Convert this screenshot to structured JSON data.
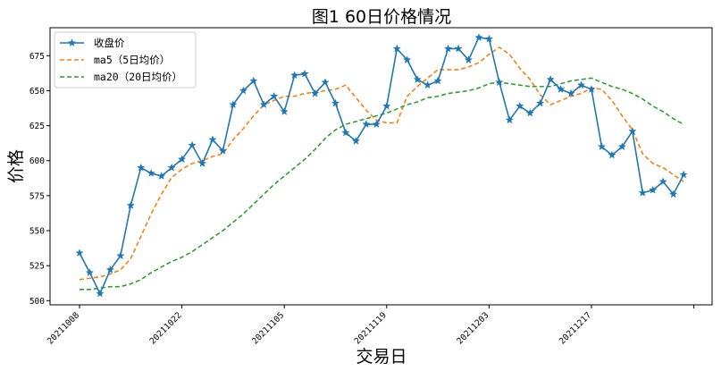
{
  "chart_data": {
    "type": "line",
    "title": "图1  60日价格情况",
    "xlabel": "交易日",
    "ylabel": "价格",
    "ylim": [
      497,
      695
    ],
    "yticks": [
      500,
      525,
      550,
      575,
      600,
      625,
      650,
      675
    ],
    "x_tick_labels": [
      "20211008",
      "20211022",
      "20211105",
      "20211119",
      "20211203",
      "20211217"
    ],
    "x_tick_index": [
      0,
      10,
      20,
      30,
      40,
      50
    ],
    "x_extra_tick_index": 60,
    "grid": false,
    "legend_placement": "top-left",
    "series": [
      {
        "name": "收盘价",
        "color": "#1f77b4",
        "style": "solid",
        "marker": "star",
        "values": [
          534,
          520,
          505,
          522,
          532,
          568,
          595,
          591,
          589,
          595,
          601,
          611,
          598,
          615,
          607,
          640,
          650,
          657,
          640,
          646,
          635,
          661,
          662,
          648,
          656,
          641,
          620,
          614,
          626,
          626,
          639,
          680,
          672,
          658,
          654,
          657,
          680,
          680,
          672,
          688,
          687,
          656,
          629,
          639,
          634,
          641,
          658,
          651,
          648,
          654,
          651,
          610,
          604,
          610,
          621,
          577,
          579,
          585,
          576,
          590
        ]
      },
      {
        "name": "ma5（5日均价）",
        "color": "#ff7f0e",
        "style": "dashed",
        "start_index": 0,
        "values": [
          515,
          516,
          517,
          519,
          522,
          530,
          546,
          562,
          576,
          588,
          594,
          598,
          600,
          603,
          605,
          615,
          623,
          632,
          640,
          643,
          646,
          646,
          648,
          649,
          650,
          651,
          654,
          645,
          636,
          629,
          627,
          627,
          646,
          653,
          659,
          665,
          665,
          665,
          667,
          670,
          676,
          681,
          676,
          666,
          658,
          647,
          640,
          643,
          646,
          648,
          652,
          651,
          643,
          632,
          622,
          605,
          598,
          595,
          590,
          585
        ]
      },
      {
        "name": "ma20（20日均价）",
        "color": "#2ca02c",
        "style": "dashed",
        "start_index": 0,
        "values": [
          508,
          508,
          509,
          510,
          510,
          512,
          515,
          520,
          524,
          528,
          531,
          535,
          540,
          545,
          550,
          556,
          562,
          569,
          576,
          583,
          589,
          595,
          601,
          608,
          616,
          622,
          626,
          628,
          630,
          632,
          634,
          637,
          640,
          642,
          645,
          646,
          648,
          649,
          650,
          652,
          655,
          656,
          655,
          654,
          653,
          653,
          653,
          655,
          657,
          658,
          659,
          656,
          653,
          651,
          648,
          644,
          639,
          635,
          630,
          626
        ]
      }
    ]
  }
}
